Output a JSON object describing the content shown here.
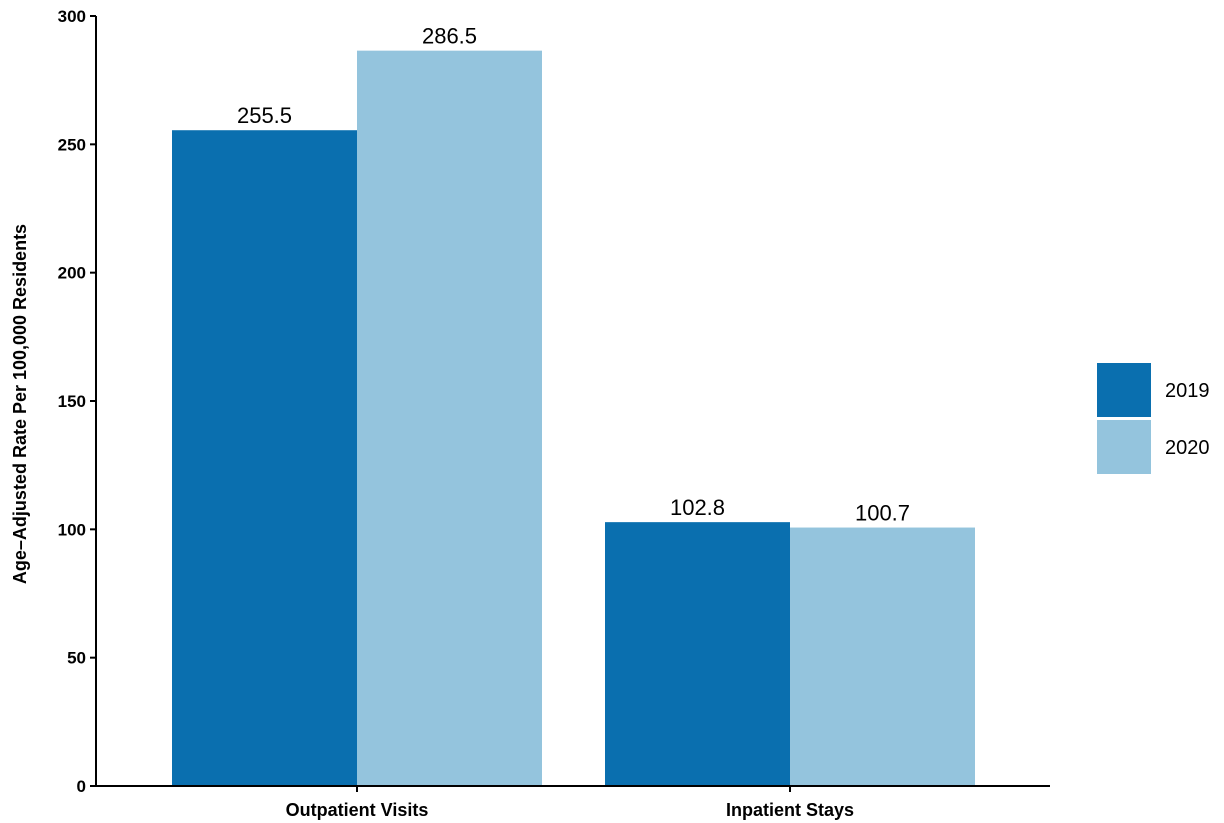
{
  "chart_data": {
    "type": "bar",
    "title": "",
    "xlabel": "",
    "ylabel": "Age–Adjusted Rate Per 100,000 Residents",
    "categories": [
      "Outpatient Visits",
      "Inpatient Stays"
    ],
    "series": [
      {
        "name": "2019",
        "color": "#0a6faf",
        "values": [
          255.5,
          102.8
        ]
      },
      {
        "name": "2020",
        "color": "#94c4dd",
        "values": [
          286.5,
          100.7
        ]
      }
    ],
    "data_labels": [
      [
        "255.5",
        "102.8"
      ],
      [
        "286.5",
        "100.7"
      ]
    ],
    "ylim": [
      0,
      300
    ],
    "yticks": [
      0,
      50,
      100,
      150,
      200,
      250,
      300
    ],
    "grid": false,
    "legend_position": "right"
  }
}
